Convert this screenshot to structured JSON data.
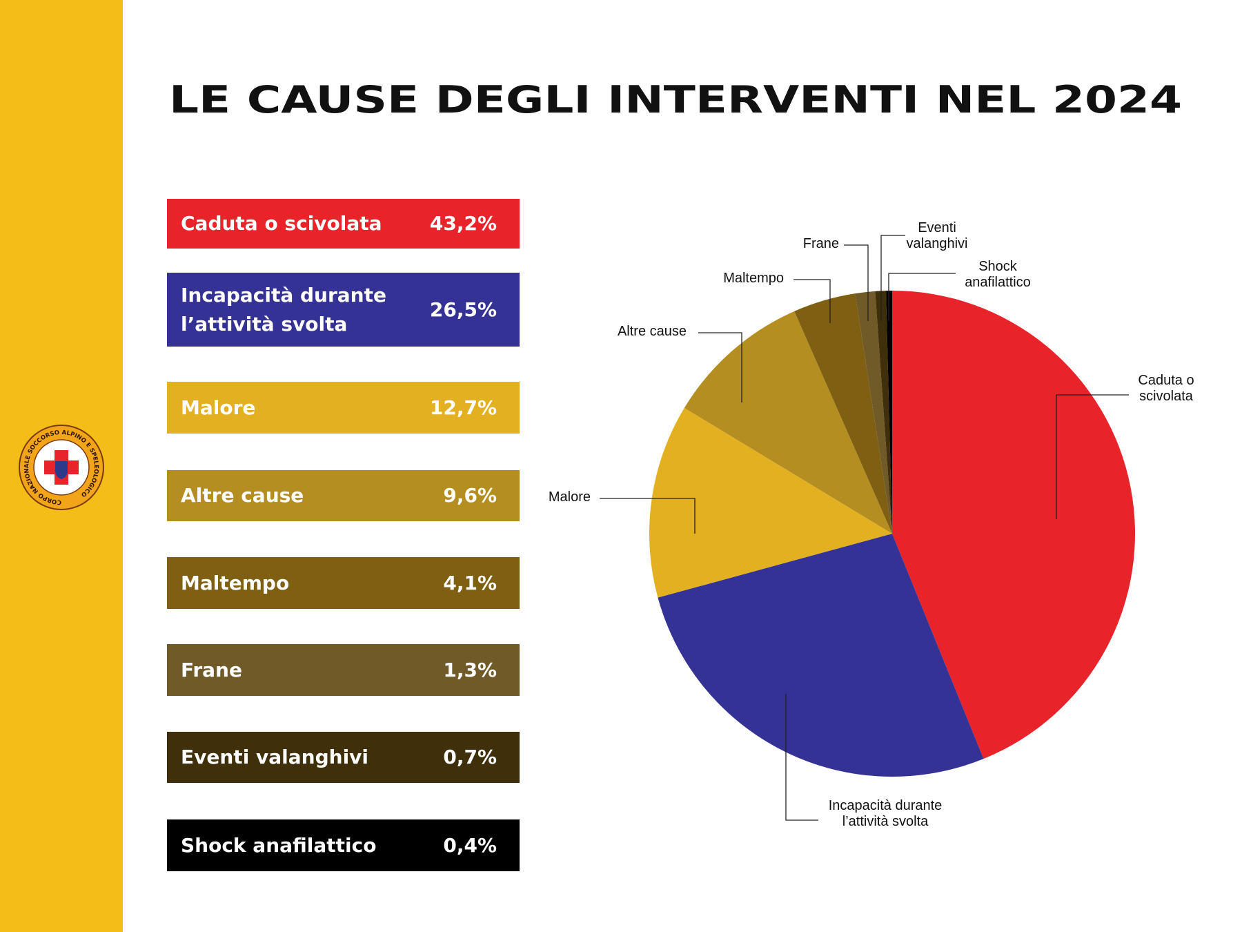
{
  "title": "LE CAUSE DEGLI INTERVENTI NEL 2024",
  "logo": {
    "text": "CORPO NAZIONALE SOCCORSO ALPINO E SPELEOLOGICO"
  },
  "chart_data": {
    "type": "pie",
    "categories": [
      "Caduta o scivolata",
      "Incapacità durante l’attività svolta",
      "Malore",
      "Altre cause",
      "Maltempo",
      "Frane",
      "Eventi valanghivi",
      "Shock anafilattico"
    ],
    "values": [
      43.2,
      26.5,
      12.7,
      9.6,
      4.1,
      1.3,
      0.7,
      0.4
    ],
    "value_labels": [
      "43,2%",
      "26,5%",
      "12,7%",
      "9,6%",
      "4,1%",
      "1,3%",
      "0,7%",
      "0,4%"
    ],
    "colors": [
      "#e8232a",
      "#353296",
      "#e2b021",
      "#b58e22",
      "#7f5f11",
      "#6f5a28",
      "#3f300b",
      "#000000"
    ]
  }
}
